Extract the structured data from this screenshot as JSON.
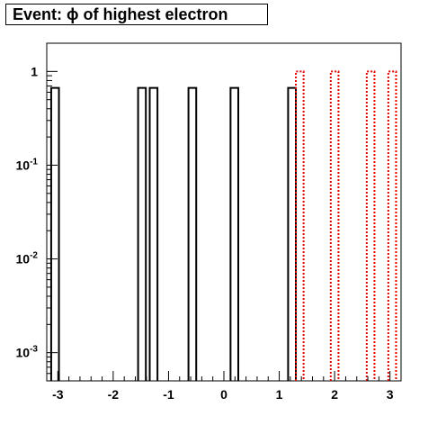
{
  "chart_data": {
    "type": "bar",
    "title": "Event: ϕ of highest electron",
    "y_scale": "log",
    "xlim": [
      -3.2,
      3.2
    ],
    "ylim": [
      0.0005,
      2
    ],
    "x_ticks": [
      {
        "value": -3,
        "label": "-3"
      },
      {
        "value": -2,
        "label": "-2"
      },
      {
        "value": -1,
        "label": "-1"
      },
      {
        "value": 0,
        "label": "0"
      },
      {
        "value": 1,
        "label": "1"
      },
      {
        "value": 2,
        "label": "2"
      },
      {
        "value": 3,
        "label": "3"
      }
    ],
    "y_ticks": [
      {
        "value": 1,
        "base": "1",
        "exp": ""
      },
      {
        "value": 0.1,
        "base": "10",
        "exp": "-1"
      },
      {
        "value": 0.01,
        "base": "10",
        "exp": "-2"
      },
      {
        "value": 0.001,
        "base": "10",
        "exp": "-3"
      }
    ],
    "series": [
      {
        "color": "#000000",
        "style": "solid",
        "bins": [
          {
            "x0": -3.12,
            "x1": -2.98,
            "value": 0.667
          },
          {
            "x0": -1.55,
            "x1": -1.41,
            "value": 0.667
          },
          {
            "x0": -1.34,
            "x1": -1.2,
            "value": 0.667
          },
          {
            "x0": -0.64,
            "x1": -0.5,
            "value": 0.667
          },
          {
            "x0": 0.12,
            "x1": 0.26,
            "value": 0.667
          },
          {
            "x0": 1.16,
            "x1": 1.3,
            "value": 0.667
          }
        ]
      },
      {
        "color": "#dd0000",
        "style": "dotted",
        "bins": [
          {
            "x0": 1.3,
            "x1": 1.44,
            "value": 1
          },
          {
            "x0": 1.93,
            "x1": 2.07,
            "value": 1
          },
          {
            "x0": 2.58,
            "x1": 2.72,
            "value": 1
          },
          {
            "x0": 2.97,
            "x1": 3.11,
            "value": 1
          }
        ]
      }
    ]
  }
}
